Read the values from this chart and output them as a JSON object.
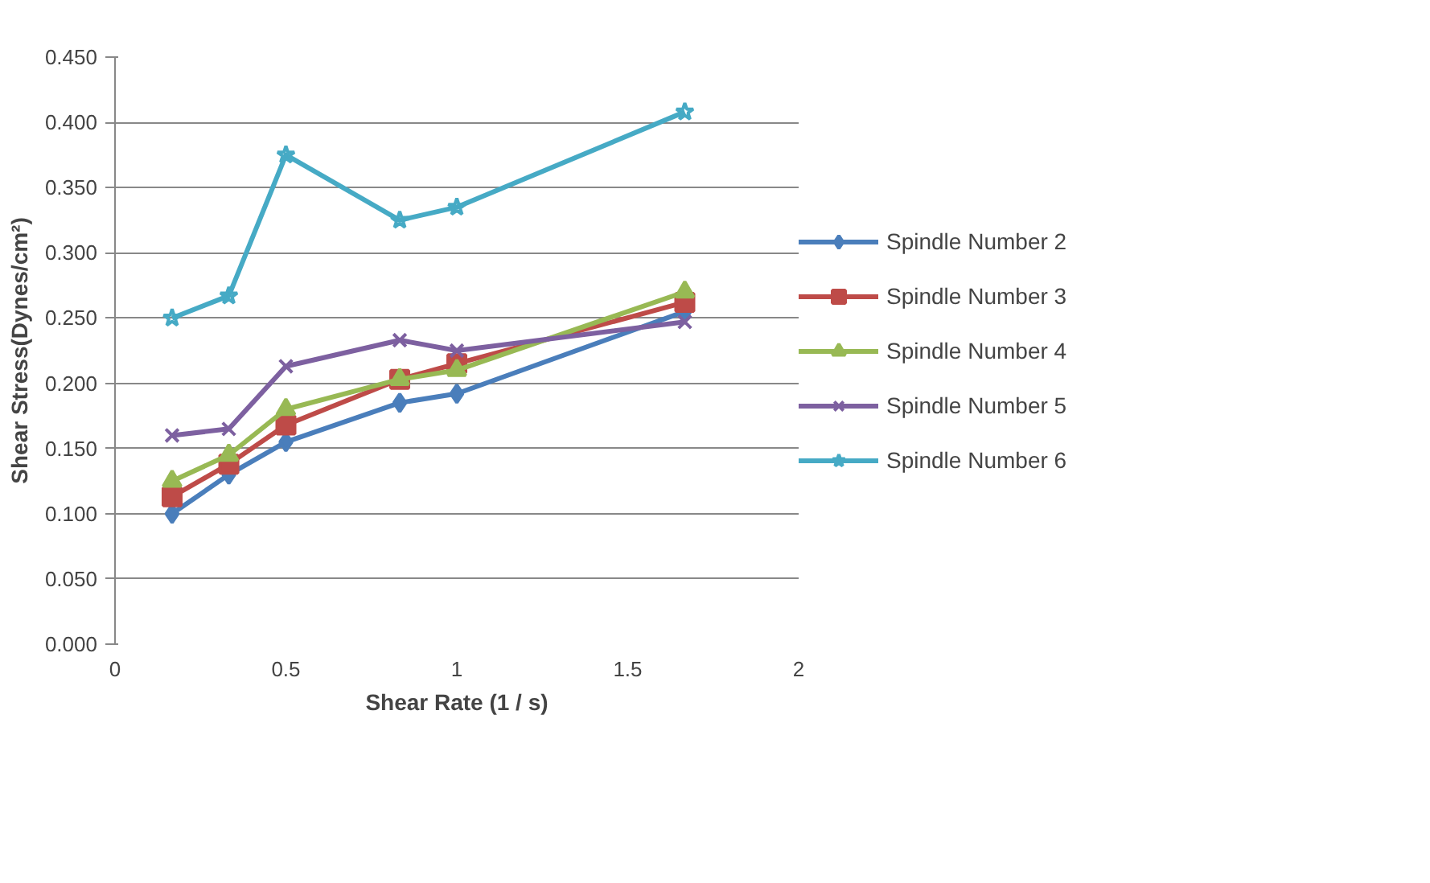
{
  "chart_data": {
    "type": "line",
    "xlabel": "Shear Rate (1 / s)",
    "ylabel": "Shear Stress(Dynes/cm²)",
    "x": [
      0.167,
      0.333,
      0.5,
      0.833,
      1.0,
      1.667
    ],
    "xlim": [
      0,
      2
    ],
    "xticks": [
      0,
      0.5,
      1,
      1.5,
      2
    ],
    "ylim": [
      0,
      0.45
    ],
    "yticks": [
      {
        "value": 0,
        "label": "0.000"
      },
      {
        "value": 0.05,
        "label": "0.050"
      },
      {
        "value": 0.1,
        "label": "0.100"
      },
      {
        "value": 0.15,
        "label": "0.150"
      },
      {
        "value": 0.2,
        "label": "0.200"
      },
      {
        "value": 0.25,
        "label": "0.250"
      },
      {
        "value": 0.3,
        "label": "0.300"
      },
      {
        "value": 0.35,
        "label": "0.350"
      },
      {
        "value": 0.4,
        "label": "0.400"
      },
      {
        "value": 0.45,
        "label": "0.450"
      }
    ],
    "grid": "y",
    "legend": "right",
    "series": [
      {
        "name": "Spindle Number 2",
        "color": "#4a7ebb",
        "marker": "diamond",
        "values": [
          0.1,
          0.13,
          0.155,
          0.185,
          0.192,
          0.255
        ]
      },
      {
        "name": "Spindle Number 3",
        "color": "#be4b48",
        "marker": "square",
        "values": [
          0.113,
          0.138,
          0.168,
          0.203,
          0.215,
          0.262
        ]
      },
      {
        "name": "Spindle Number 4",
        "color": "#98b954",
        "marker": "triangle",
        "values": [
          0.125,
          0.145,
          0.18,
          0.203,
          0.21,
          0.27
        ]
      },
      {
        "name": "Spindle Number 5",
        "color": "#7d60a0",
        "marker": "cross",
        "values": [
          0.16,
          0.165,
          0.213,
          0.233,
          0.225,
          0.247
        ]
      },
      {
        "name": "Spindle Number 6",
        "color": "#46aac5",
        "marker": "star",
        "values": [
          0.25,
          0.267,
          0.375,
          0.325,
          0.335,
          0.408
        ]
      }
    ]
  }
}
